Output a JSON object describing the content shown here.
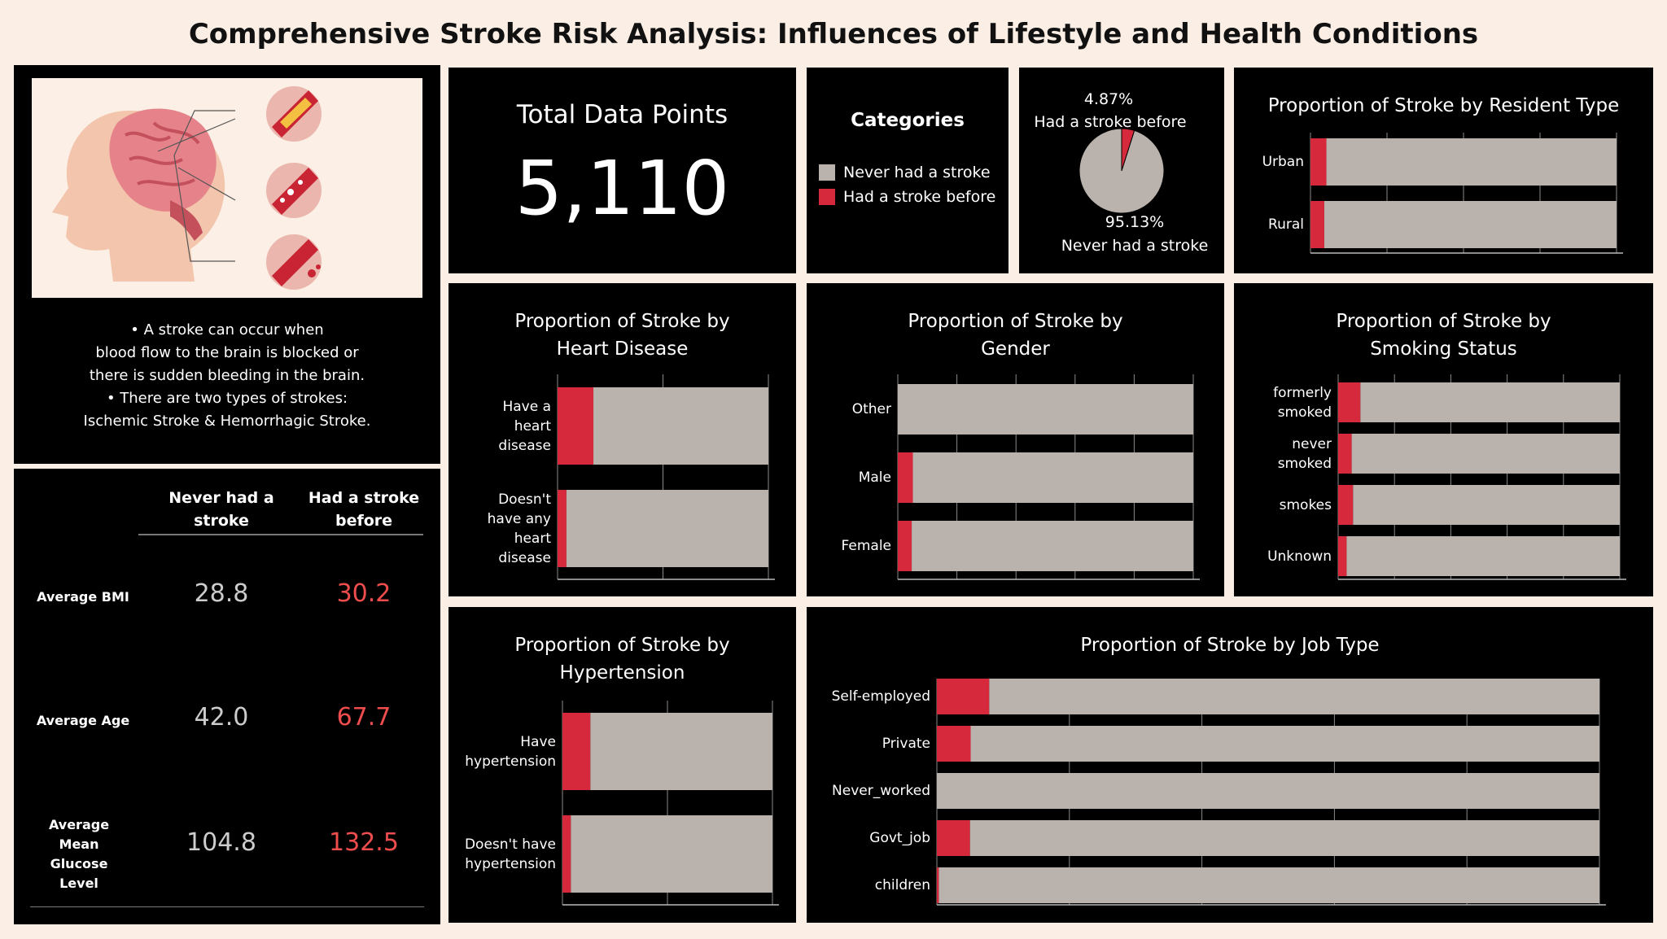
{
  "title": "Comprehensive Stroke Risk Analysis: Influences of Lifestyle and Health Conditions",
  "colors": {
    "stroke": "#d62a3c",
    "never": "#bab3ad",
    "panel": "#000000",
    "bg": "#fbeee5",
    "accent_text": "#ef4d4d"
  },
  "info": {
    "image": "brain-artery-illustration",
    "lines": [
      "• A stroke can occur when",
      "blood flow to the brain is blocked or",
      "there is sudden bleeding in the brain.",
      "• There are two types of strokes:",
      "Ischemic Stroke & Hemorrhagic Stroke."
    ]
  },
  "stats_table": {
    "col_never": "Never had a stroke",
    "col_had": "Had a stroke before",
    "rows": [
      {
        "label": "Average BMI",
        "never": "28.8",
        "had": "30.2"
      },
      {
        "label": "Average Age",
        "never": "42.0",
        "had": "67.7"
      },
      {
        "label": "Average Mean Glucose Level",
        "never": "104.8",
        "had": "132.5"
      }
    ]
  },
  "total": {
    "label": "Total Data Points",
    "value": "5,110"
  },
  "legend": {
    "title": "Categories",
    "items": [
      {
        "label": "Never had a stroke",
        "color": "#bab3ad"
      },
      {
        "label": "Had a stroke before",
        "color": "#d62a3c"
      }
    ]
  },
  "chart_data": [
    {
      "id": "pie",
      "type": "pie",
      "slices": [
        {
          "label": "Had a stroke before",
          "value": 4.87,
          "text": "4.87%"
        },
        {
          "label": "Never had a stroke",
          "value": 95.13,
          "text": "95.13%"
        }
      ]
    },
    {
      "id": "resident",
      "type": "bar",
      "orientation": "horizontal",
      "stacked": true,
      "title": "Proportion of Stroke by Resident Type",
      "categories": [
        "Urban",
        "Rural"
      ],
      "series": [
        {
          "name": "Had a stroke before",
          "values": [
            0.052,
            0.045
          ]
        },
        {
          "name": "Never had a stroke",
          "values": [
            0.948,
            0.955
          ]
        }
      ],
      "xlim": [
        0,
        1
      ]
    },
    {
      "id": "heart",
      "type": "bar",
      "orientation": "horizontal",
      "stacked": true,
      "title": "Proportion of Stroke by Heart Disease",
      "categories": [
        "Have a heart disease",
        "Doesn't have any heart disease"
      ],
      "series": [
        {
          "name": "Had a stroke before",
          "values": [
            0.17,
            0.042
          ]
        },
        {
          "name": "Never had a stroke",
          "values": [
            0.83,
            0.958
          ]
        }
      ],
      "xlim": [
        0,
        1
      ]
    },
    {
      "id": "gender",
      "type": "bar",
      "orientation": "horizontal",
      "stacked": true,
      "title": "Proportion of Stroke by Gender",
      "categories": [
        "Other",
        "Male",
        "Female"
      ],
      "series": [
        {
          "name": "Had a stroke before",
          "values": [
            0.0,
            0.051,
            0.047
          ]
        },
        {
          "name": "Never had a stroke",
          "values": [
            1.0,
            0.949,
            0.953
          ]
        }
      ],
      "xlim": [
        0,
        1
      ]
    },
    {
      "id": "smoking",
      "type": "bar",
      "orientation": "horizontal",
      "stacked": true,
      "title": "Proportion of Stroke by Smoking Status",
      "categories": [
        "formerly smoked",
        "never smoked",
        "smokes",
        "Unknown"
      ],
      "series": [
        {
          "name": "Had a stroke before",
          "values": [
            0.079,
            0.048,
            0.053,
            0.03
          ]
        },
        {
          "name": "Never had a stroke",
          "values": [
            0.921,
            0.952,
            0.947,
            0.97
          ]
        }
      ],
      "xlim": [
        0,
        1
      ]
    },
    {
      "id": "hyper",
      "type": "bar",
      "orientation": "horizontal",
      "stacked": true,
      "title": "Proportion of Stroke by Hypertension",
      "categories": [
        "Have hypertension",
        "Doesn't have hypertension"
      ],
      "series": [
        {
          "name": "Had a stroke before",
          "values": [
            0.133,
            0.04
          ]
        },
        {
          "name": "Never had a stroke",
          "values": [
            0.867,
            0.96
          ]
        }
      ],
      "xlim": [
        0,
        1
      ]
    },
    {
      "id": "job",
      "type": "bar",
      "orientation": "horizontal",
      "stacked": true,
      "title": "Proportion of Stroke by Job Type",
      "categories": [
        "Self-employed",
        "Private",
        "Never_worked",
        "Govt_job",
        "children"
      ],
      "series": [
        {
          "name": "Had a stroke before",
          "values": [
            0.079,
            0.051,
            0.0,
            0.05,
            0.003
          ]
        },
        {
          "name": "Never had a stroke",
          "values": [
            0.921,
            0.949,
            1.0,
            0.95,
            0.997
          ]
        }
      ],
      "xlim": [
        0,
        1
      ]
    }
  ]
}
